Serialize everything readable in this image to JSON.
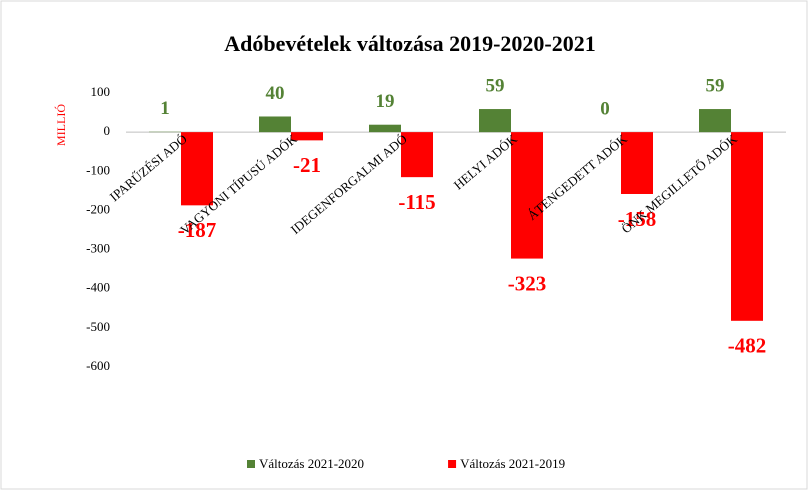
{
  "chart_data": {
    "type": "bar",
    "title": "Adóbevételek változása 2019-2020-2021",
    "y_label": "MILLIÓ",
    "categories": [
      "IPARŰZÉSI ADÓ",
      "VAGYONI TÍPUSÚ ADÓK",
      "IDEGENFORGALMI ADÓ",
      "HELYI ADÓK",
      "ÁTENGEDETT ADÓK",
      "ÖNK MEGILLETŐ ADÓK"
    ],
    "series": [
      {
        "name": "Változás 2021-2020",
        "color": "#548235",
        "values": [
          1,
          40,
          19,
          59,
          0,
          59
        ]
      },
      {
        "name": "Változás 2021-2019",
        "color": "#ff0000",
        "values": [
          -187,
          -21,
          -115,
          -323,
          -158,
          -482
        ]
      }
    ],
    "ylim": [
      -600,
      100
    ],
    "yticks": [
      100,
      0,
      -100,
      -200,
      -300,
      -400,
      -500,
      -600
    ],
    "grid": false,
    "legend": "bottom"
  }
}
